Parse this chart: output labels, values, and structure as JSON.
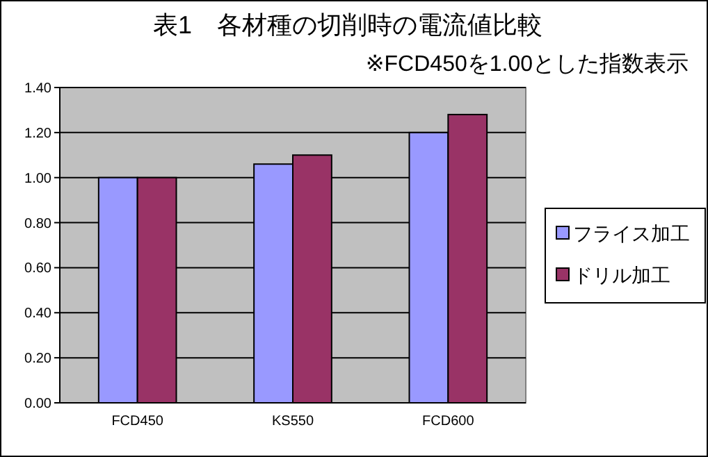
{
  "chart_data": {
    "type": "bar",
    "title": "表1　各材種の切削時の電流値比較",
    "subtitle": "※FCD450を1.00とした指数表示",
    "categories": [
      "FCD450",
      "KS550",
      "FCD600"
    ],
    "series": [
      {
        "name": "フライス加工",
        "color": "#9999ff",
        "values": [
          1.0,
          1.06,
          1.2
        ]
      },
      {
        "name": "ドリル加工",
        "color": "#993366",
        "values": [
          1.0,
          1.1,
          1.28
        ]
      }
    ],
    "ylim": [
      0,
      1.4
    ],
    "yticks": [
      {
        "value": 0,
        "label": "0.00"
      },
      {
        "value": 0.2,
        "label": "0.20"
      },
      {
        "value": 0.4,
        "label": "0.40"
      },
      {
        "value": 0.6,
        "label": "0.60"
      },
      {
        "value": 0.8,
        "label": "0.80"
      },
      {
        "value": 1,
        "label": "1.00"
      },
      {
        "value": 1.2,
        "label": "1.20"
      },
      {
        "value": 1.4,
        "label": "1.40"
      }
    ],
    "grid": "y",
    "legend": "right"
  }
}
